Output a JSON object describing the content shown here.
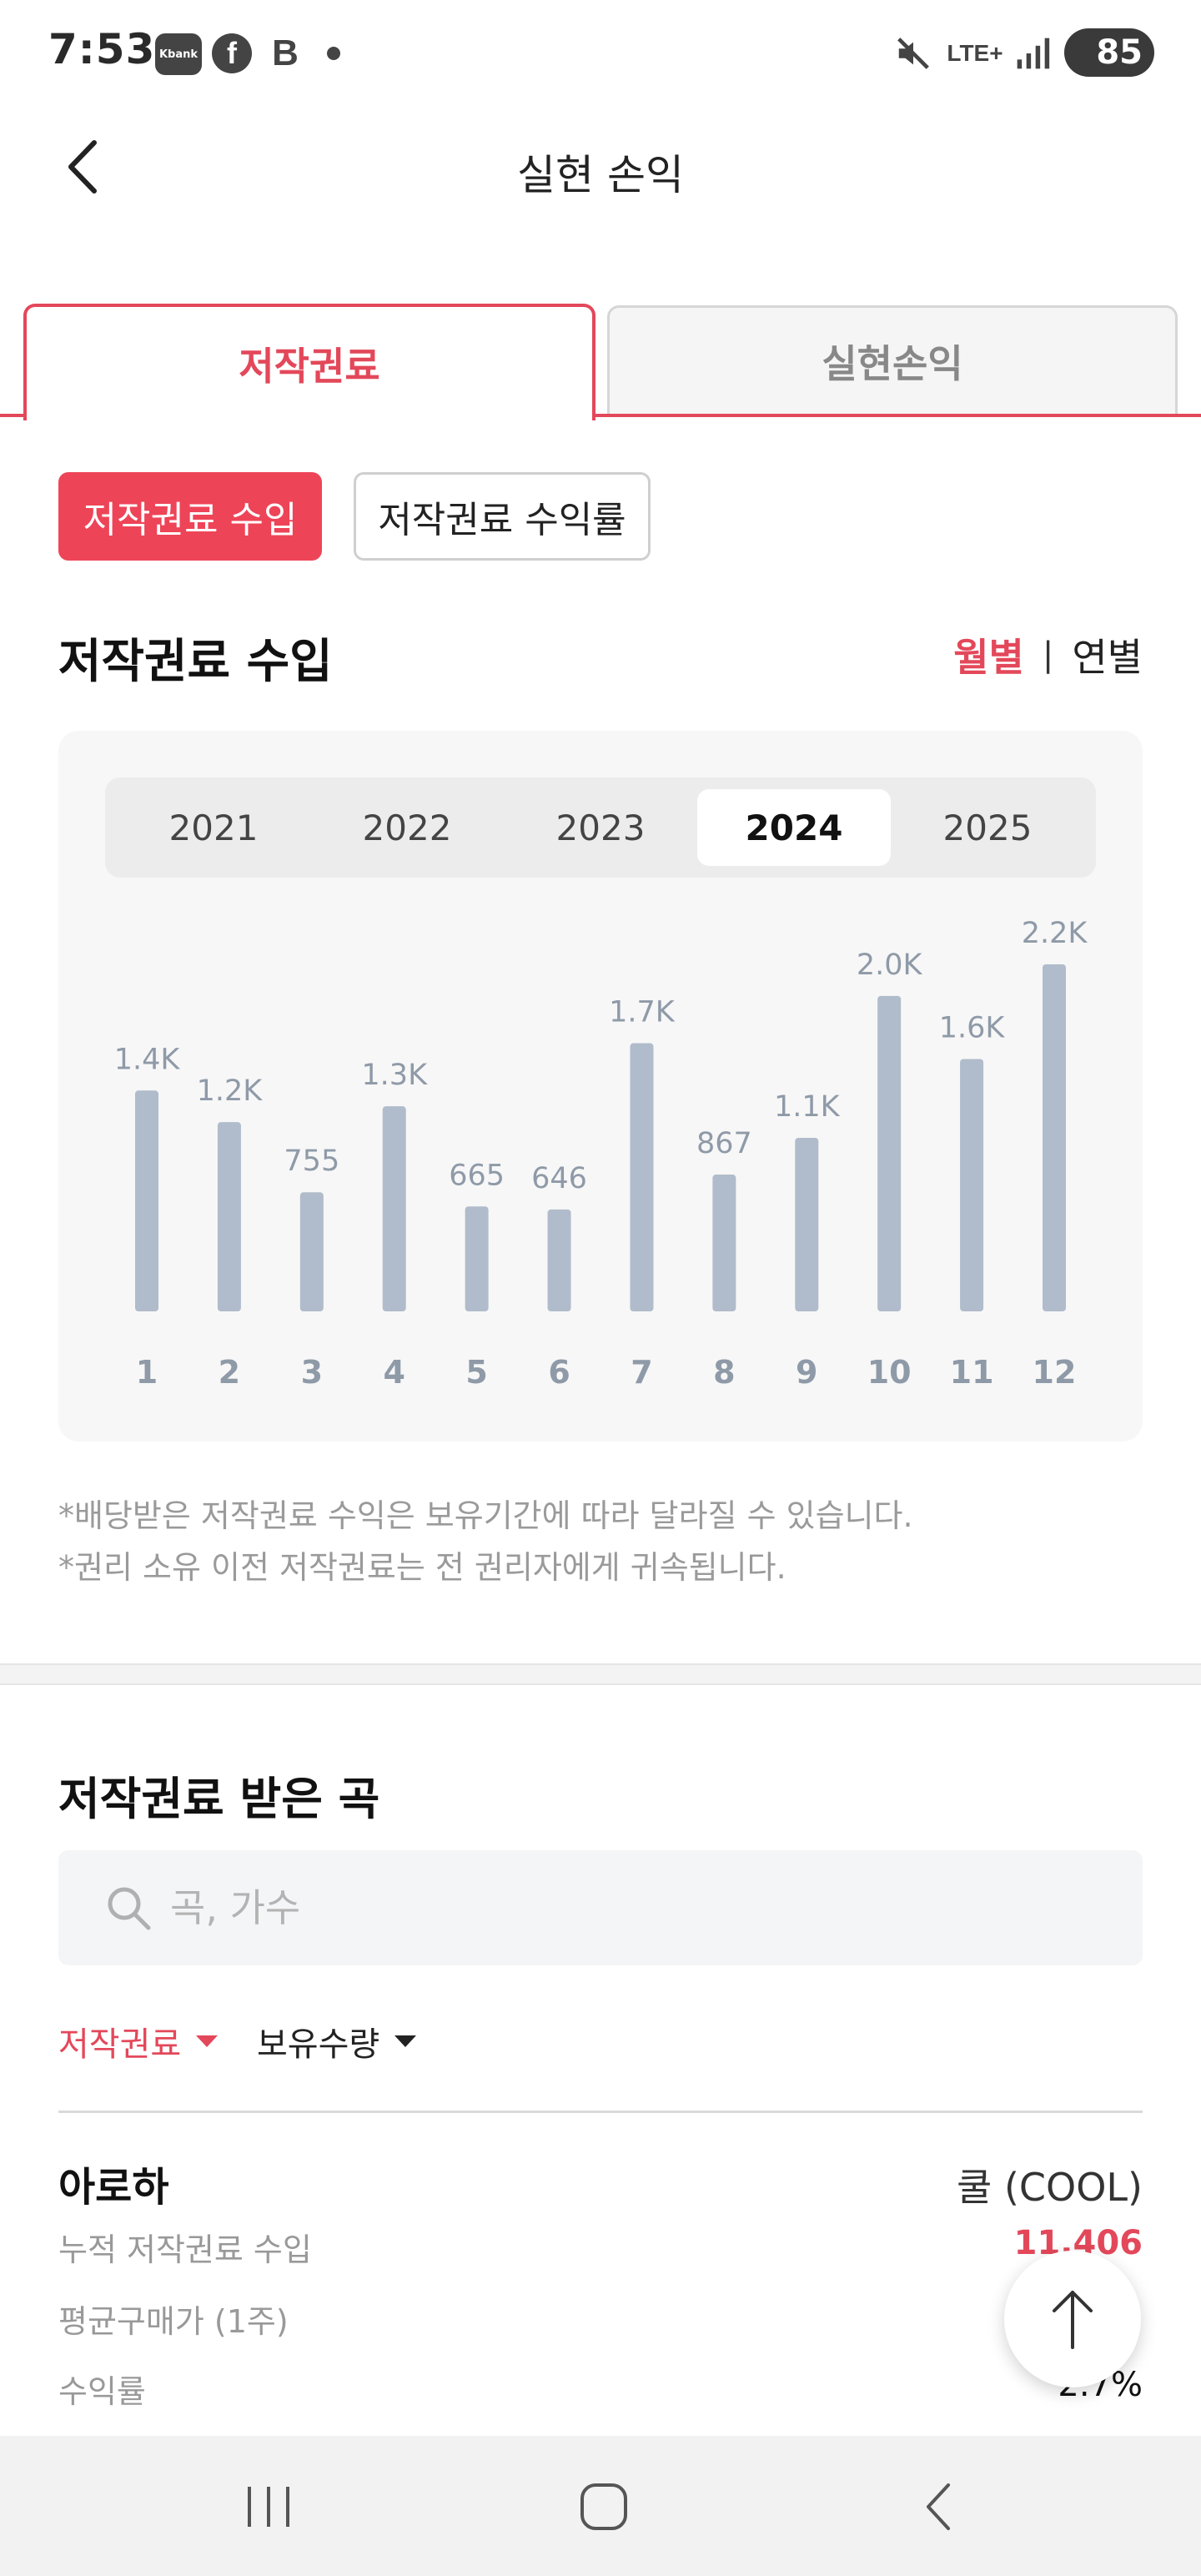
{
  "status_bar": {
    "time": "7:53",
    "kbank_label": "Kbank",
    "fb_label": "f",
    "blog_label": "B",
    "network": "LTE+",
    "battery": "85",
    "icons": [
      "kbank-icon",
      "facebook-icon",
      "blog-icon",
      "dot-icon",
      "mute-icon",
      "lte-icon",
      "signal-icon",
      "battery-icon"
    ]
  },
  "header": {
    "title": "실현 손익",
    "back_icon": "chevron-left-icon"
  },
  "main_tabs": [
    {
      "label": "저작권료",
      "active": true
    },
    {
      "label": "실현손익",
      "active": false
    }
  ],
  "sub_tabs": [
    {
      "label": "저작권료 수입",
      "active": true
    },
    {
      "label": "저작권료 수익률",
      "active": false
    }
  ],
  "income_section": {
    "title": "저작권료 수입",
    "period_active": "월별",
    "period_sep": "|",
    "period_inactive": "연별"
  },
  "year_tabs": [
    {
      "label": "2021",
      "active": false
    },
    {
      "label": "2022",
      "active": false
    },
    {
      "label": "2023",
      "active": false
    },
    {
      "label": "2024",
      "active": true
    },
    {
      "label": "2025",
      "active": false
    }
  ],
  "chart_data": {
    "type": "bar",
    "title": "",
    "xlabel": "",
    "ylabel": "",
    "categories": [
      "1",
      "2",
      "3",
      "4",
      "5",
      "6",
      "7",
      "8",
      "9",
      "10",
      "11",
      "12"
    ],
    "values": [
      1400,
      1200,
      755,
      1300,
      665,
      646,
      1700,
      867,
      1100,
      2000,
      1600,
      2200
    ],
    "value_labels": [
      "1.4K",
      "1.2K",
      "755",
      "1.3K",
      "665",
      "646",
      "1.7K",
      "867",
      "1.1K",
      "2.0K",
      "1.6K",
      "2.2K"
    ],
    "ylim": [
      0,
      2200
    ],
    "grid": false,
    "bar_color": "#b0bccb",
    "label_color": "#8f9aa8"
  },
  "footnotes": {
    "line1": "*배당받은 저작권료 수익은 보유기간에 따라 달라질 수 있습니다.",
    "line2": "*권리 소유 이전 저작권료는 전 권리자에게 귀속됩니다."
  },
  "songs_section": {
    "title": "저작권료 받은 곡",
    "search_placeholder": "곡, 가수",
    "search_value": "",
    "filter_primary": "저작권료",
    "filter_secondary": "보유수량"
  },
  "song_item": {
    "title": "아로하",
    "artist": "쿨 (COOL)",
    "row1_label": "누적 저작권료 수입",
    "row1_value": "11,406",
    "row2_label": "평균구매가 (1주)",
    "row3_label": "수익률",
    "row3_value": "2.7%"
  },
  "colors": {
    "accent": "#e3485a",
    "chip_active": "#ee4458",
    "bar": "#b0bccb"
  },
  "nav_bar": {
    "icons": [
      "recent-apps-icon",
      "home-icon",
      "back-icon"
    ]
  }
}
